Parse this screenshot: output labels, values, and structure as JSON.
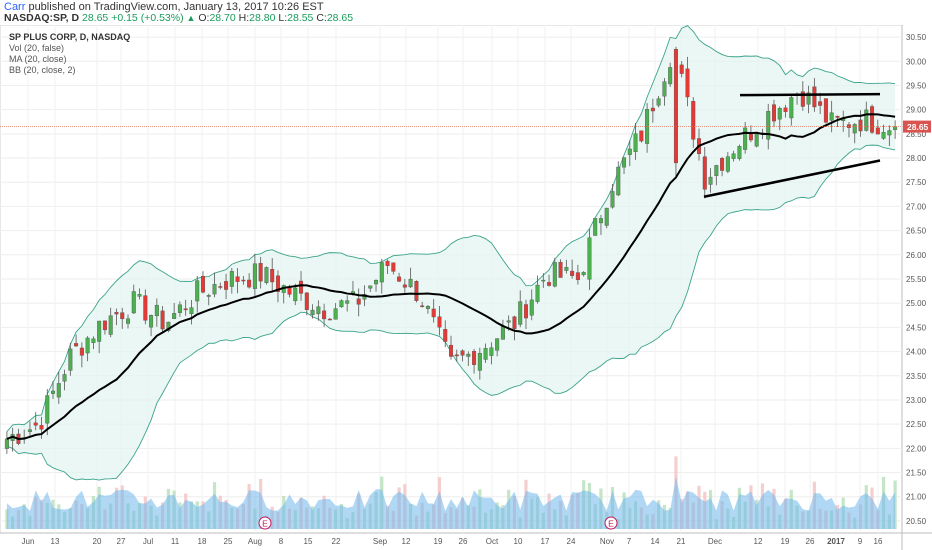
{
  "header": {
    "author": "Carr",
    "published": " published on TradingView.com, January 13, 2017 10:26 EST",
    "symbol": "NASDAQ:SP, D",
    "last": "28.65",
    "change": "+0.15 (+0.53%)",
    "o_label": "O:",
    "o": "28.70",
    "h_label": "H:",
    "h": "28.80",
    "l_label": "L:",
    "l": "28.55",
    "c_label": "C:",
    "c": "28.65"
  },
  "legend": {
    "title": "SP PLUS CORP, D, NASDAQ",
    "vol": "Vol (20, false)",
    "ma": "MA (20, close)",
    "bb": "BB (20, close, 2)"
  },
  "colors": {
    "up": "#4caf50",
    "down": "#e53935",
    "bb": "#3aa38a",
    "bb_fill": "#e2f4ef",
    "ma": "#000000",
    "vol_area": "#6fb8ec",
    "price_line": "#e0735a",
    "price_label": "#d9534f"
  },
  "chart_data": {
    "type": "candlestick",
    "title": "SP PLUS CORP, D, NASDAQ",
    "ylim": [
      20.25,
      30.75
    ],
    "y_ticks": [
      "20.50",
      "21.00",
      "21.50",
      "22.00",
      "22.50",
      "23.00",
      "23.50",
      "24.00",
      "24.50",
      "25.00",
      "25.50",
      "26.00",
      "26.50",
      "27.00",
      "27.50",
      "28.00",
      "28.50",
      "29.00",
      "29.50",
      "30.00",
      "30.50"
    ],
    "x_ticks": [
      "Jun",
      "13",
      "20",
      "27",
      "Jul",
      "11",
      "18",
      "25",
      "Aug",
      "8",
      "15",
      "22",
      "Sep",
      "12",
      "19",
      "26",
      "Oct",
      "10",
      "17",
      "24",
      "Nov",
      "7",
      "14",
      "21",
      "Dec",
      "12",
      "19",
      "26",
      "2017",
      "9",
      "16"
    ],
    "current_price": "28.65",
    "earnings_markers": [
      "E",
      "E"
    ],
    "key_prices": [
      22.2,
      22.5,
      23.9,
      24.6,
      25.0,
      24.6,
      25.2,
      25.5,
      25.6,
      25.2,
      24.9,
      25.0,
      25.8,
      25.2,
      23.7,
      24.1,
      24.6,
      25.6,
      25.5,
      27.4,
      28.5,
      30.3,
      27.6,
      28.3,
      28.9,
      29.4,
      28.7,
      28.8,
      28.65
    ],
    "trendlines": [
      {
        "name": "resistance",
        "from": {
          "date": "2016-12-05",
          "price": 29.3
        },
        "to": {
          "date": "2017-01-13",
          "price": 29.32
        }
      },
      {
        "name": "support",
        "from": {
          "date": "2016-11-29",
          "price": 27.2
        },
        "to": {
          "date": "2017-01-13",
          "price": 27.95
        }
      }
    ],
    "indicators": [
      "Vol (20, false)",
      "MA (20, close)",
      "BB (20, close, 2)"
    ]
  }
}
